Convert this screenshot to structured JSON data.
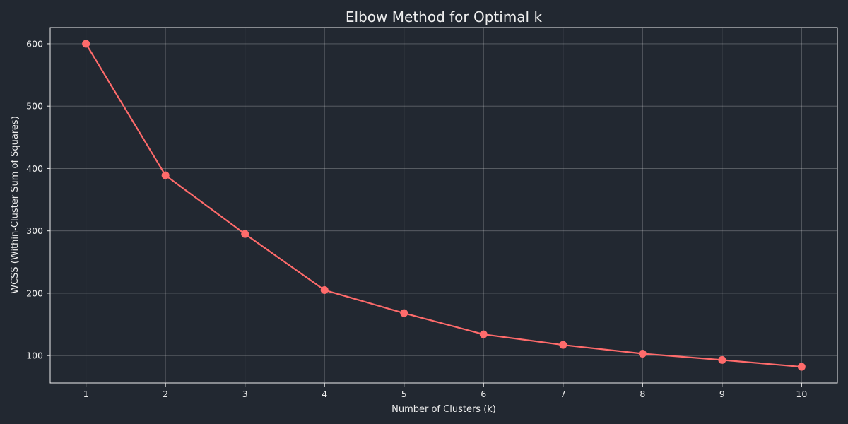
{
  "background": "#222831",
  "text_color": "#eeeeee",
  "chart_data": {
    "type": "line",
    "title": "Elbow Method for Optimal k",
    "xlabel": "Number of Clusters (k)",
    "ylabel": "WCSS (Within-Cluster Sum of Squares)",
    "x": [
      1,
      2,
      3,
      4,
      5,
      6,
      7,
      8,
      9,
      10
    ],
    "series": [
      {
        "values": [
          600,
          389,
          295,
          205,
          168,
          134,
          117,
          103,
          93,
          82
        ],
        "color": "#ff6b6b",
        "marker": "circle"
      }
    ],
    "xticks": [
      "1",
      "2",
      "3",
      "4",
      "5",
      "6",
      "7",
      "8",
      "9",
      "10"
    ],
    "yticks": [
      "100",
      "200",
      "300",
      "400",
      "500",
      "600"
    ],
    "xlim": [
      0.55,
      10.45
    ],
    "ylim": [
      56,
      626
    ],
    "grid": true
  }
}
